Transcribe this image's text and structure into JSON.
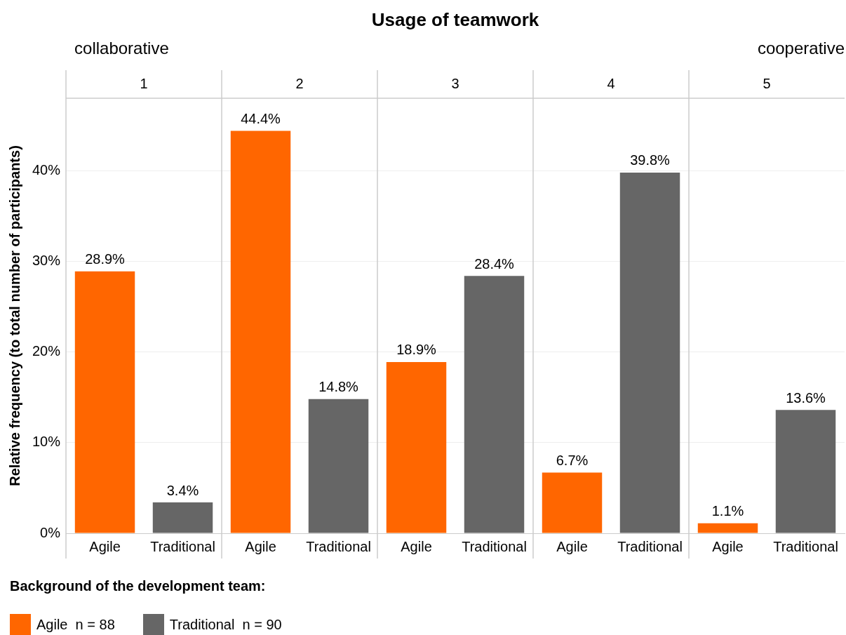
{
  "chart_data": {
    "type": "bar",
    "title": "Usage of teamwork",
    "ylabel": "Relative frequency (to total number of participants)",
    "legend_title": "Background of the development team:",
    "categories": [
      "Agile",
      "Traditional",
      "Agile",
      "Traditional",
      "Agile",
      "Traditional",
      "Agile",
      "Traditional",
      "Agile",
      "Traditional"
    ],
    "series": [
      {
        "name": "Agile  n = 88",
        "color": "#ff6600",
        "values": [
          28.9,
          null,
          44.4,
          null,
          18.9,
          null,
          6.7,
          null,
          1.1,
          null
        ],
        "value_labels": [
          "28.9%",
          null,
          "44.4%",
          null,
          "18.9%",
          null,
          "6.7%",
          null,
          "1.1%",
          null
        ]
      },
      {
        "name": "Traditional  n = 90",
        "color": "#666666",
        "values": [
          null,
          3.4,
          null,
          14.8,
          null,
          28.4,
          null,
          39.8,
          null,
          13.6
        ],
        "value_labels": [
          null,
          "3.4%",
          null,
          "14.8%",
          null,
          "28.4%",
          null,
          "39.8%",
          null,
          "13.6%"
        ]
      }
    ],
    "stacked": true,
    "ylim": [
      0,
      48
    ],
    "yticks": [
      {
        "value": 0,
        "label": "0%"
      },
      {
        "value": 10,
        "label": "10%"
      },
      {
        "value": 20,
        "label": "20%"
      },
      {
        "value": 30,
        "label": "30%"
      },
      {
        "value": 40,
        "label": "40%"
      }
    ],
    "grid": "y",
    "legend": "bottom",
    "annotations": [
      "collaborative",
      "cooperative",
      "1",
      "2",
      "3",
      "4",
      "5"
    ]
  }
}
